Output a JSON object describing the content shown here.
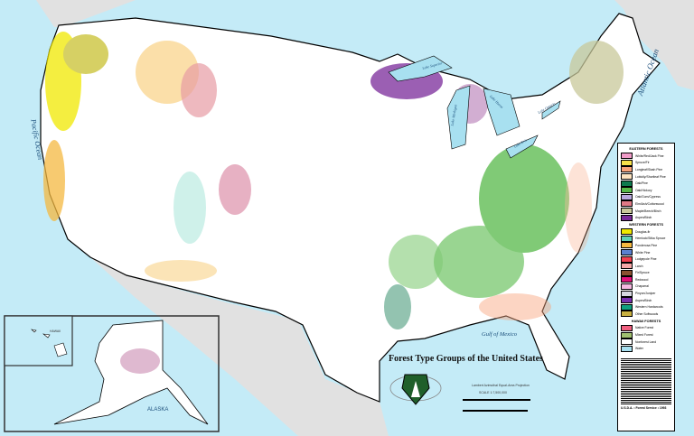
{
  "title": "Forest Type Groups of the United States",
  "labels": {
    "pacific": "Pacific Ocean",
    "atlantic": "Atlantic Ocean",
    "gulf": "Gulf of Mexico",
    "superior": "Lake Superior",
    "michigan": "Lake Michigan",
    "huron": "Lake Huron",
    "erie": "Lake Erie",
    "ontario": "Lake Ontario",
    "alaska": "ALASKA",
    "hawaii": "HAWAII"
  },
  "projection": "Lambert Azimuthal Equal-Area Projection",
  "scale": "SCALE 1:7,500,000",
  "colors": {
    "ocean": "#c4ebf7",
    "foreign": "#e1e1e1",
    "land": "#ffffff"
  },
  "legend": {
    "eastern_title": "EASTERN FORESTS",
    "eastern": [
      {
        "label": "White/Red/Jack Pine",
        "color": "#f09cc8"
      },
      {
        "label": "Spruce/Fir",
        "color": "#f6e04a"
      },
      {
        "label": "Longleaf/Slash Pine",
        "color": "#f8a27a"
      },
      {
        "label": "Loblolly/Shortleaf Pine",
        "color": "#fde3c0"
      },
      {
        "label": "Oak/Pine",
        "color": "#0e7a4e"
      },
      {
        "label": "Oak/Hickory",
        "color": "#56b948"
      },
      {
        "label": "Oak/Gum/Cypress",
        "color": "#b8a8dc"
      },
      {
        "label": "Elm/Ash/Cottonwood",
        "color": "#e07a86"
      },
      {
        "label": "Maple/Beech/Birch",
        "color": "#c9c89a"
      },
      {
        "label": "Aspen/Birch",
        "color": "#7a2a9a"
      }
    ],
    "western_title": "WESTERN FORESTS",
    "western": [
      {
        "label": "Douglas-fir",
        "color": "#f0e800"
      },
      {
        "label": "Hemlock/Sitka Spruce",
        "color": "#5fd0b8"
      },
      {
        "label": "Ponderosa Pine",
        "color": "#f5b840"
      },
      {
        "label": "White Pine",
        "color": "#5a80d0"
      },
      {
        "label": "Lodgepole Pine",
        "color": "#f04050"
      },
      {
        "label": "Larch",
        "color": "#f6a8a8"
      },
      {
        "label": "Fir/Spruce",
        "color": "#8a5030"
      },
      {
        "label": "Redwood",
        "color": "#e0107a"
      },
      {
        "label": "Chaparral",
        "color": "#f4b8e0"
      },
      {
        "label": "Pinyon/Juniper",
        "color": "#d8d8e0"
      },
      {
        "label": "Aspen/Birch",
        "color": "#7a30b0"
      },
      {
        "label": "Western Hardwoods",
        "color": "#10a080"
      },
      {
        "label": "Other Softwoods",
        "color": "#c8b040"
      }
    ],
    "hawaii_title": "HAWAII FORESTS",
    "hawaii": [
      {
        "label": "Native Forest",
        "color": "#f06080"
      },
      {
        "label": "Mixed Forest",
        "color": "#a0c070"
      },
      {
        "label": "Nonforest Land",
        "color": "#ffffff"
      },
      {
        "label": "Water",
        "color": "#a8e0f0"
      }
    ],
    "credit": "U.S.D.A. • Forest Service • 1993"
  }
}
